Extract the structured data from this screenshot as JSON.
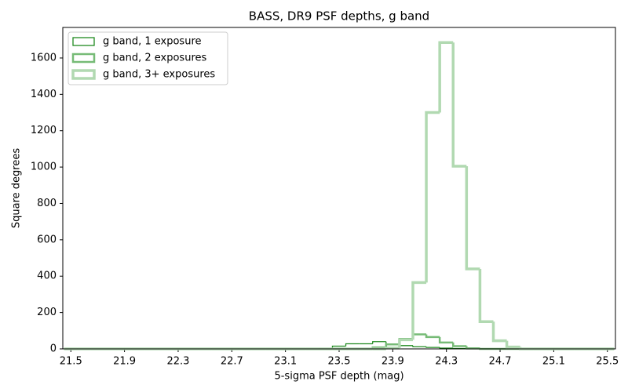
{
  "chart_data": {
    "type": "histogram_step",
    "title": "BASS, DR9 PSF depths, g band",
    "x_label": "5-sigma PSF depth (mag)",
    "y_label": "Square degrees",
    "bins": [
      21.45,
      21.55,
      21.65,
      21.75,
      21.85,
      21.95,
      22.05,
      22.15,
      22.25,
      22.35,
      22.45,
      22.55,
      22.65,
      22.75,
      22.85,
      22.95,
      23.05,
      23.15,
      23.25,
      23.35,
      23.45,
      23.55,
      23.65,
      23.75,
      23.85,
      23.95,
      24.05,
      24.15,
      24.25,
      24.35,
      24.45,
      24.55,
      24.65,
      24.75,
      24.85,
      24.95,
      25.05,
      25.15,
      25.25,
      25.35,
      25.45,
      25.55
    ],
    "series": [
      {
        "name": "g band, 1 exposure",
        "color": "#1f8a1f",
        "linewidth": 1.3,
        "values": [
          0,
          0,
          0,
          0,
          0,
          0,
          0,
          0,
          0,
          0,
          0,
          0,
          0,
          0,
          0,
          0,
          0,
          0,
          0,
          3,
          15,
          28,
          28,
          40,
          22,
          18,
          12,
          8,
          4,
          2,
          0,
          0,
          0,
          0,
          0,
          0,
          0,
          0,
          0,
          0,
          0
        ]
      },
      {
        "name": "g band, 2 exposures",
        "color": "#76bb76",
        "linewidth": 2.5,
        "values": [
          0,
          0,
          0,
          0,
          0,
          0,
          0,
          0,
          0,
          0,
          0,
          0,
          0,
          0,
          0,
          0,
          0,
          0,
          0,
          0,
          0,
          0,
          0,
          8,
          25,
          55,
          80,
          65,
          35,
          15,
          3,
          0,
          0,
          0,
          0,
          0,
          0,
          0,
          0,
          0,
          0
        ]
      },
      {
        "name": "g band, 3+ exposures",
        "color": "#b1d9b1",
        "linewidth": 3.5,
        "values": [
          0,
          0,
          0,
          0,
          0,
          0,
          0,
          0,
          0,
          0,
          0,
          0,
          0,
          0,
          0,
          0,
          0,
          0,
          0,
          0,
          0,
          0,
          0,
          0,
          5,
          50,
          365,
          1300,
          1685,
          1005,
          440,
          150,
          45,
          10,
          0,
          0,
          0,
          0,
          0,
          0,
          0
        ]
      }
    ],
    "xlim": [
      21.44,
      25.56
    ],
    "xticks": [
      21.5,
      21.9,
      22.3,
      22.7,
      23.1,
      23.5,
      23.9,
      24.3,
      24.7,
      25.1,
      25.5
    ],
    "ylim": [
      0,
      1768
    ],
    "yticks": [
      0,
      200,
      400,
      600,
      800,
      1000,
      1200,
      1400,
      1600
    ],
    "legend": "upper left"
  }
}
